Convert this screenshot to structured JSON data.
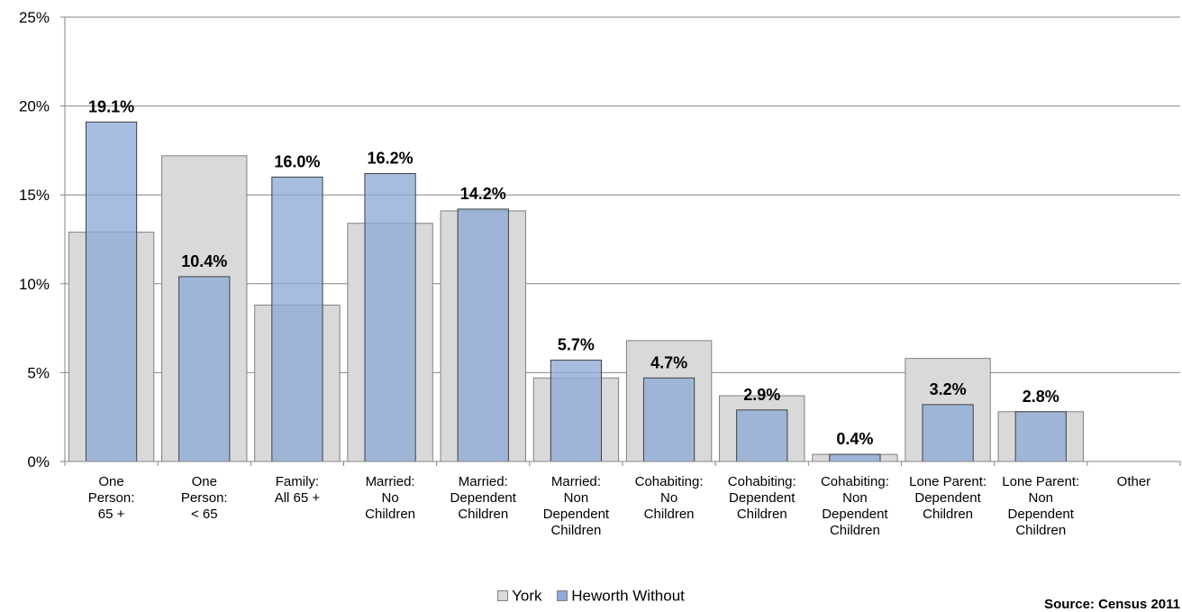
{
  "chart_data": {
    "type": "bar",
    "categories": [
      [
        "One",
        "Person:",
        "65 +"
      ],
      [
        "One",
        "Person:",
        "< 65"
      ],
      [
        "Family:",
        "All 65 +"
      ],
      [
        "Married:",
        "No",
        "Children"
      ],
      [
        "Married:",
        "Dependent",
        "Children"
      ],
      [
        "Married:",
        "Non",
        "Dependent",
        "Children"
      ],
      [
        "Cohabiting:",
        "No",
        "Children"
      ],
      [
        "Cohabiting:",
        "Dependent",
        "Children"
      ],
      [
        "Cohabiting:",
        "Non",
        "Dependent",
        "Children"
      ],
      [
        "Lone Parent:",
        "Dependent",
        "Children"
      ],
      [
        "Lone Parent:",
        "Non",
        "Dependent",
        "Children"
      ],
      [
        "Other"
      ]
    ],
    "series": [
      {
        "name": "York",
        "values": [
          12.9,
          17.2,
          8.8,
          13.4,
          14.1,
          4.7,
          6.8,
          3.7,
          0.4,
          5.8,
          2.8,
          0
        ],
        "color": "#d9d9d9",
        "stroke": "#808080"
      },
      {
        "name": "Heworth Without",
        "values": [
          19.1,
          10.4,
          16.0,
          16.2,
          14.2,
          5.7,
          4.7,
          2.9,
          0.4,
          3.2,
          2.8,
          0
        ],
        "color": "#8eaad7",
        "stroke": "#3f3f3f"
      }
    ],
    "data_labels": [
      "19.1%",
      "10.4%",
      "16.0%",
      "16.2%",
      "14.2%",
      "5.7%",
      "4.7%",
      "2.9%",
      "0.4%",
      "3.2%",
      "2.8%",
      ""
    ],
    "yticks": [
      "0%",
      "5%",
      "10%",
      "15%",
      "20%",
      "25%"
    ],
    "ylim": [
      0,
      25
    ],
    "grid": true,
    "legend_position": "bottom",
    "title": "",
    "xlabel": "",
    "ylabel": ""
  },
  "source": "Source: Census 2011"
}
